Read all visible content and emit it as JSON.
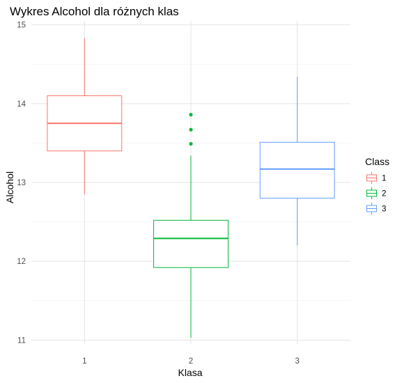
{
  "chart_data": {
    "type": "boxplot",
    "title": "Wykres Alcohol dla różnych klas",
    "xlabel": "Klasa",
    "ylabel": "Alcohol",
    "categories": [
      "1",
      "2",
      "3"
    ],
    "ylim": [
      10.95,
      15.05
    ],
    "yticks": [
      11,
      12,
      13,
      14,
      15
    ],
    "grid": true,
    "legend": {
      "title": "Class",
      "position": "right",
      "entries": [
        "1",
        "2",
        "3"
      ]
    },
    "series": [
      {
        "name": "1",
        "color": "#F8766D",
        "whisker_low": 12.85,
        "q1": 13.4,
        "median": 13.75,
        "q3": 14.1,
        "whisker_high": 14.83,
        "outliers": []
      },
      {
        "name": "2",
        "color": "#00BA38",
        "whisker_low": 11.03,
        "q1": 11.92,
        "median": 12.29,
        "q3": 12.52,
        "whisker_high": 13.34,
        "outliers": [
          13.49,
          13.67,
          13.86
        ]
      },
      {
        "name": "3",
        "color": "#619CFF",
        "whisker_low": 12.2,
        "q1": 12.8,
        "median": 13.17,
        "q3": 13.51,
        "whisker_high": 14.34,
        "outliers": []
      }
    ]
  }
}
